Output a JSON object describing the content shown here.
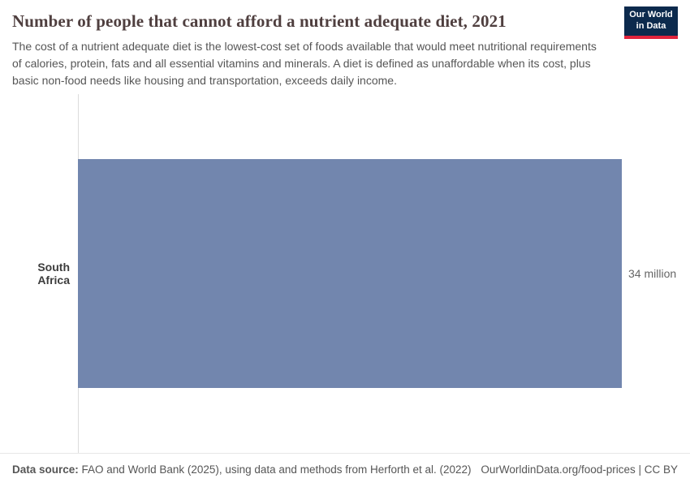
{
  "header": {
    "title": "Number of people that cannot afford a nutrient adequate diet, 2021",
    "logo": {
      "line1": "Our World",
      "line2": "in Data",
      "background_color": "#0c2a4d",
      "accent_color": "#e0233c"
    }
  },
  "subtitle": "The cost of a nutrient adequate diet is the lowest-cost set of foods available that would meet nutritional requirements of calories, protein, fats and all essential vitamins and minerals. A diet is defined as unaffordable when its cost, plus basic non-food needs like housing and transportation, exceeds daily income.",
  "chart_data": {
    "type": "bar",
    "orientation": "horizontal",
    "title": "Number of people that cannot afford a nutrient adequate diet, 2021",
    "categories": [
      "South Africa"
    ],
    "values": [
      34
    ],
    "value_labels": [
      "34 million"
    ],
    "unit": "million",
    "xlim": [
      0,
      34
    ],
    "bar_color": "#7286ae",
    "grid": false,
    "legend": "none"
  },
  "footer": {
    "source_label": "Data source:",
    "source_text": " FAO and World Bank (2025), using data and methods from Herforth et al. (2022)",
    "link_text": "OurWorldinData.org/food-prices | CC BY"
  }
}
